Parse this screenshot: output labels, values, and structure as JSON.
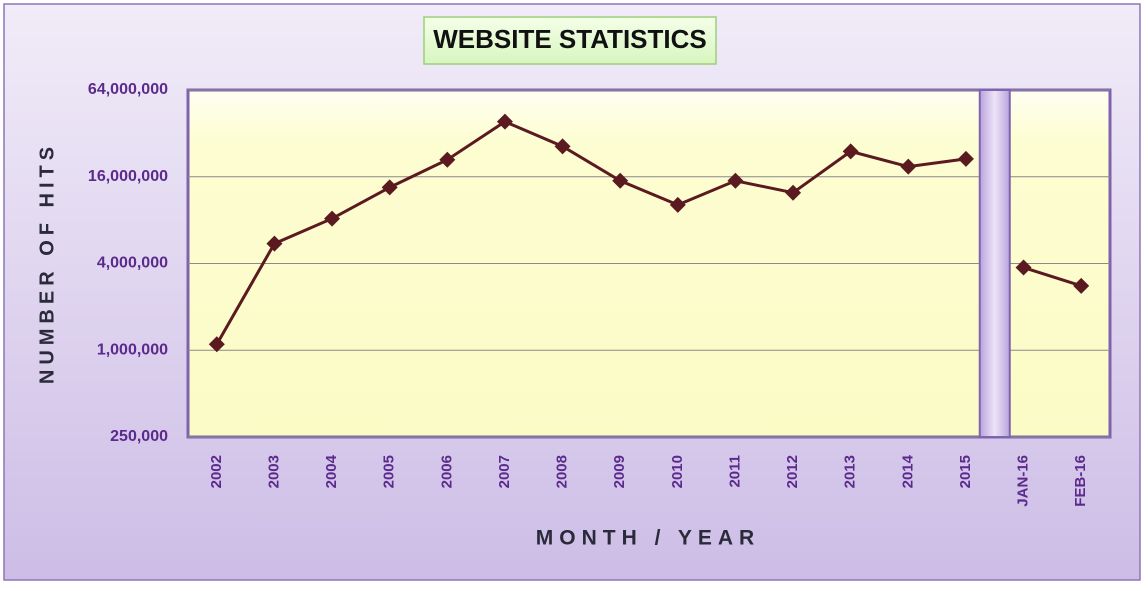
{
  "chart_data": {
    "type": "line",
    "title": "WEBSITE STATISTICS",
    "x_label": "MONTH / YEAR",
    "y_label": "NUMBER OF HITS",
    "categories": [
      "2002",
      "2003",
      "2004",
      "2005",
      "2006",
      "2007",
      "2008",
      "2009",
      "2010",
      "2011",
      "2012",
      "2013",
      "2014",
      "2015",
      "JAN-16",
      "FEB-16"
    ],
    "values": [
      1100000,
      5500000,
      8200000,
      13500000,
      21000000,
      38600000,
      26000000,
      15000000,
      10200000,
      15000000,
      12400000,
      24000000,
      18800000,
      21300000,
      3750000,
      2800000
    ],
    "color": "#5b1a1f",
    "ylim": [
      250000,
      64000000
    ],
    "log_scale": true,
    "grid": true,
    "separator_after_index": 13,
    "yticks": [
      {
        "value": 250000,
        "label": "250,000"
      },
      {
        "value": 1000000,
        "label": "1,000,000"
      },
      {
        "value": 4000000,
        "label": "4,000,000"
      },
      {
        "value": 16000000,
        "label": "16,000,000"
      },
      {
        "value": 64000000,
        "label": "64,000,000"
      }
    ]
  }
}
